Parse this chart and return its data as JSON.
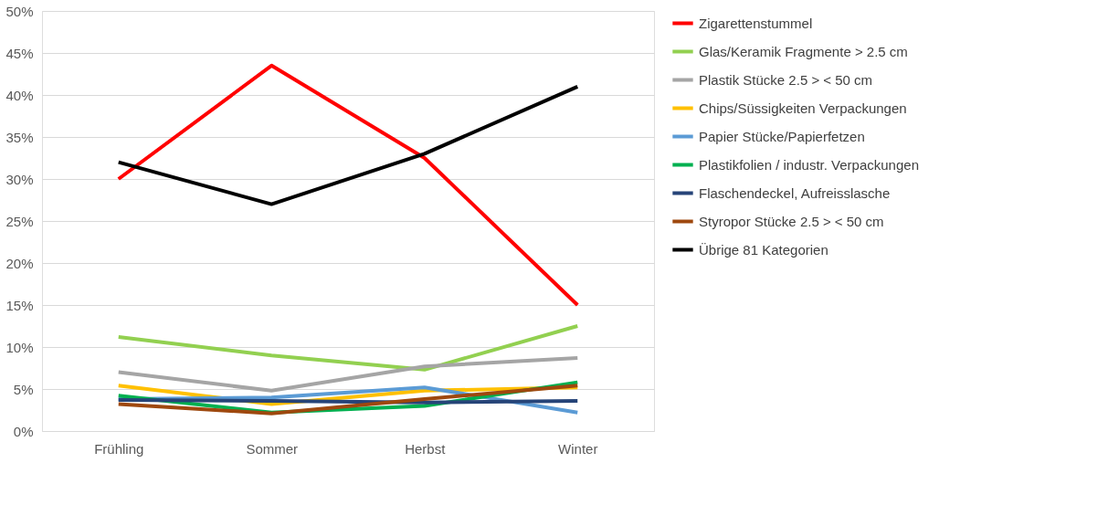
{
  "chart_data": {
    "type": "line",
    "categories": [
      "Frühling",
      "Sommer",
      "Herbst",
      "Winter"
    ],
    "series": [
      {
        "name": "Zigarettenstummel",
        "color": "#ff0000",
        "values": [
          30,
          43.5,
          32.5,
          15
        ]
      },
      {
        "name": "Glas/Keramik Fragmente > 2.5 cm",
        "color": "#92d050",
        "values": [
          11.2,
          9,
          7.3,
          12.5
        ]
      },
      {
        "name": "Plastik Stücke 2.5 > < 50 cm",
        "color": "#a5a5a5",
        "values": [
          7,
          4.8,
          7.7,
          8.7
        ]
      },
      {
        "name": "Chips/Süssigkeiten Verpackungen",
        "color": "#ffc000",
        "values": [
          5.4,
          3.2,
          4.8,
          5.2
        ]
      },
      {
        "name": "Papier Stücke/Papierfetzen",
        "color": "#5b9bd5",
        "values": [
          3.8,
          4,
          5.2,
          2.2
        ]
      },
      {
        "name": "Plastikfolien / industr. Verpackungen",
        "color": "#00b050",
        "values": [
          4.2,
          2.2,
          3,
          5.8
        ]
      },
      {
        "name": "Flaschendeckel, Aufreisslasche",
        "color": "#264478",
        "values": [
          3.7,
          3.6,
          3.4,
          3.6
        ]
      },
      {
        "name": "Styropor Stücke 2.5 > < 50 cm",
        "color": "#9e480e",
        "values": [
          3.2,
          2.1,
          3.8,
          5.4
        ]
      },
      {
        "name": "Übrige 81 Kategorien",
        "color": "#000000",
        "values": [
          32,
          27,
          33,
          41
        ]
      }
    ],
    "ylim": [
      0,
      50
    ],
    "yticks": [
      {
        "value": 0,
        "label": "0%"
      },
      {
        "value": 5,
        "label": "5%"
      },
      {
        "value": 10,
        "label": "10%"
      },
      {
        "value": 15,
        "label": "15%"
      },
      {
        "value": 20,
        "label": "20%"
      },
      {
        "value": 25,
        "label": "25%"
      },
      {
        "value": 30,
        "label": "30%"
      },
      {
        "value": 35,
        "label": "35%"
      },
      {
        "value": 40,
        "label": "40%"
      },
      {
        "value": 45,
        "label": "45%"
      },
      {
        "value": 50,
        "label": "50%"
      }
    ],
    "grid": "y",
    "legend": "right",
    "marker": "none",
    "line_style": "solid"
  }
}
